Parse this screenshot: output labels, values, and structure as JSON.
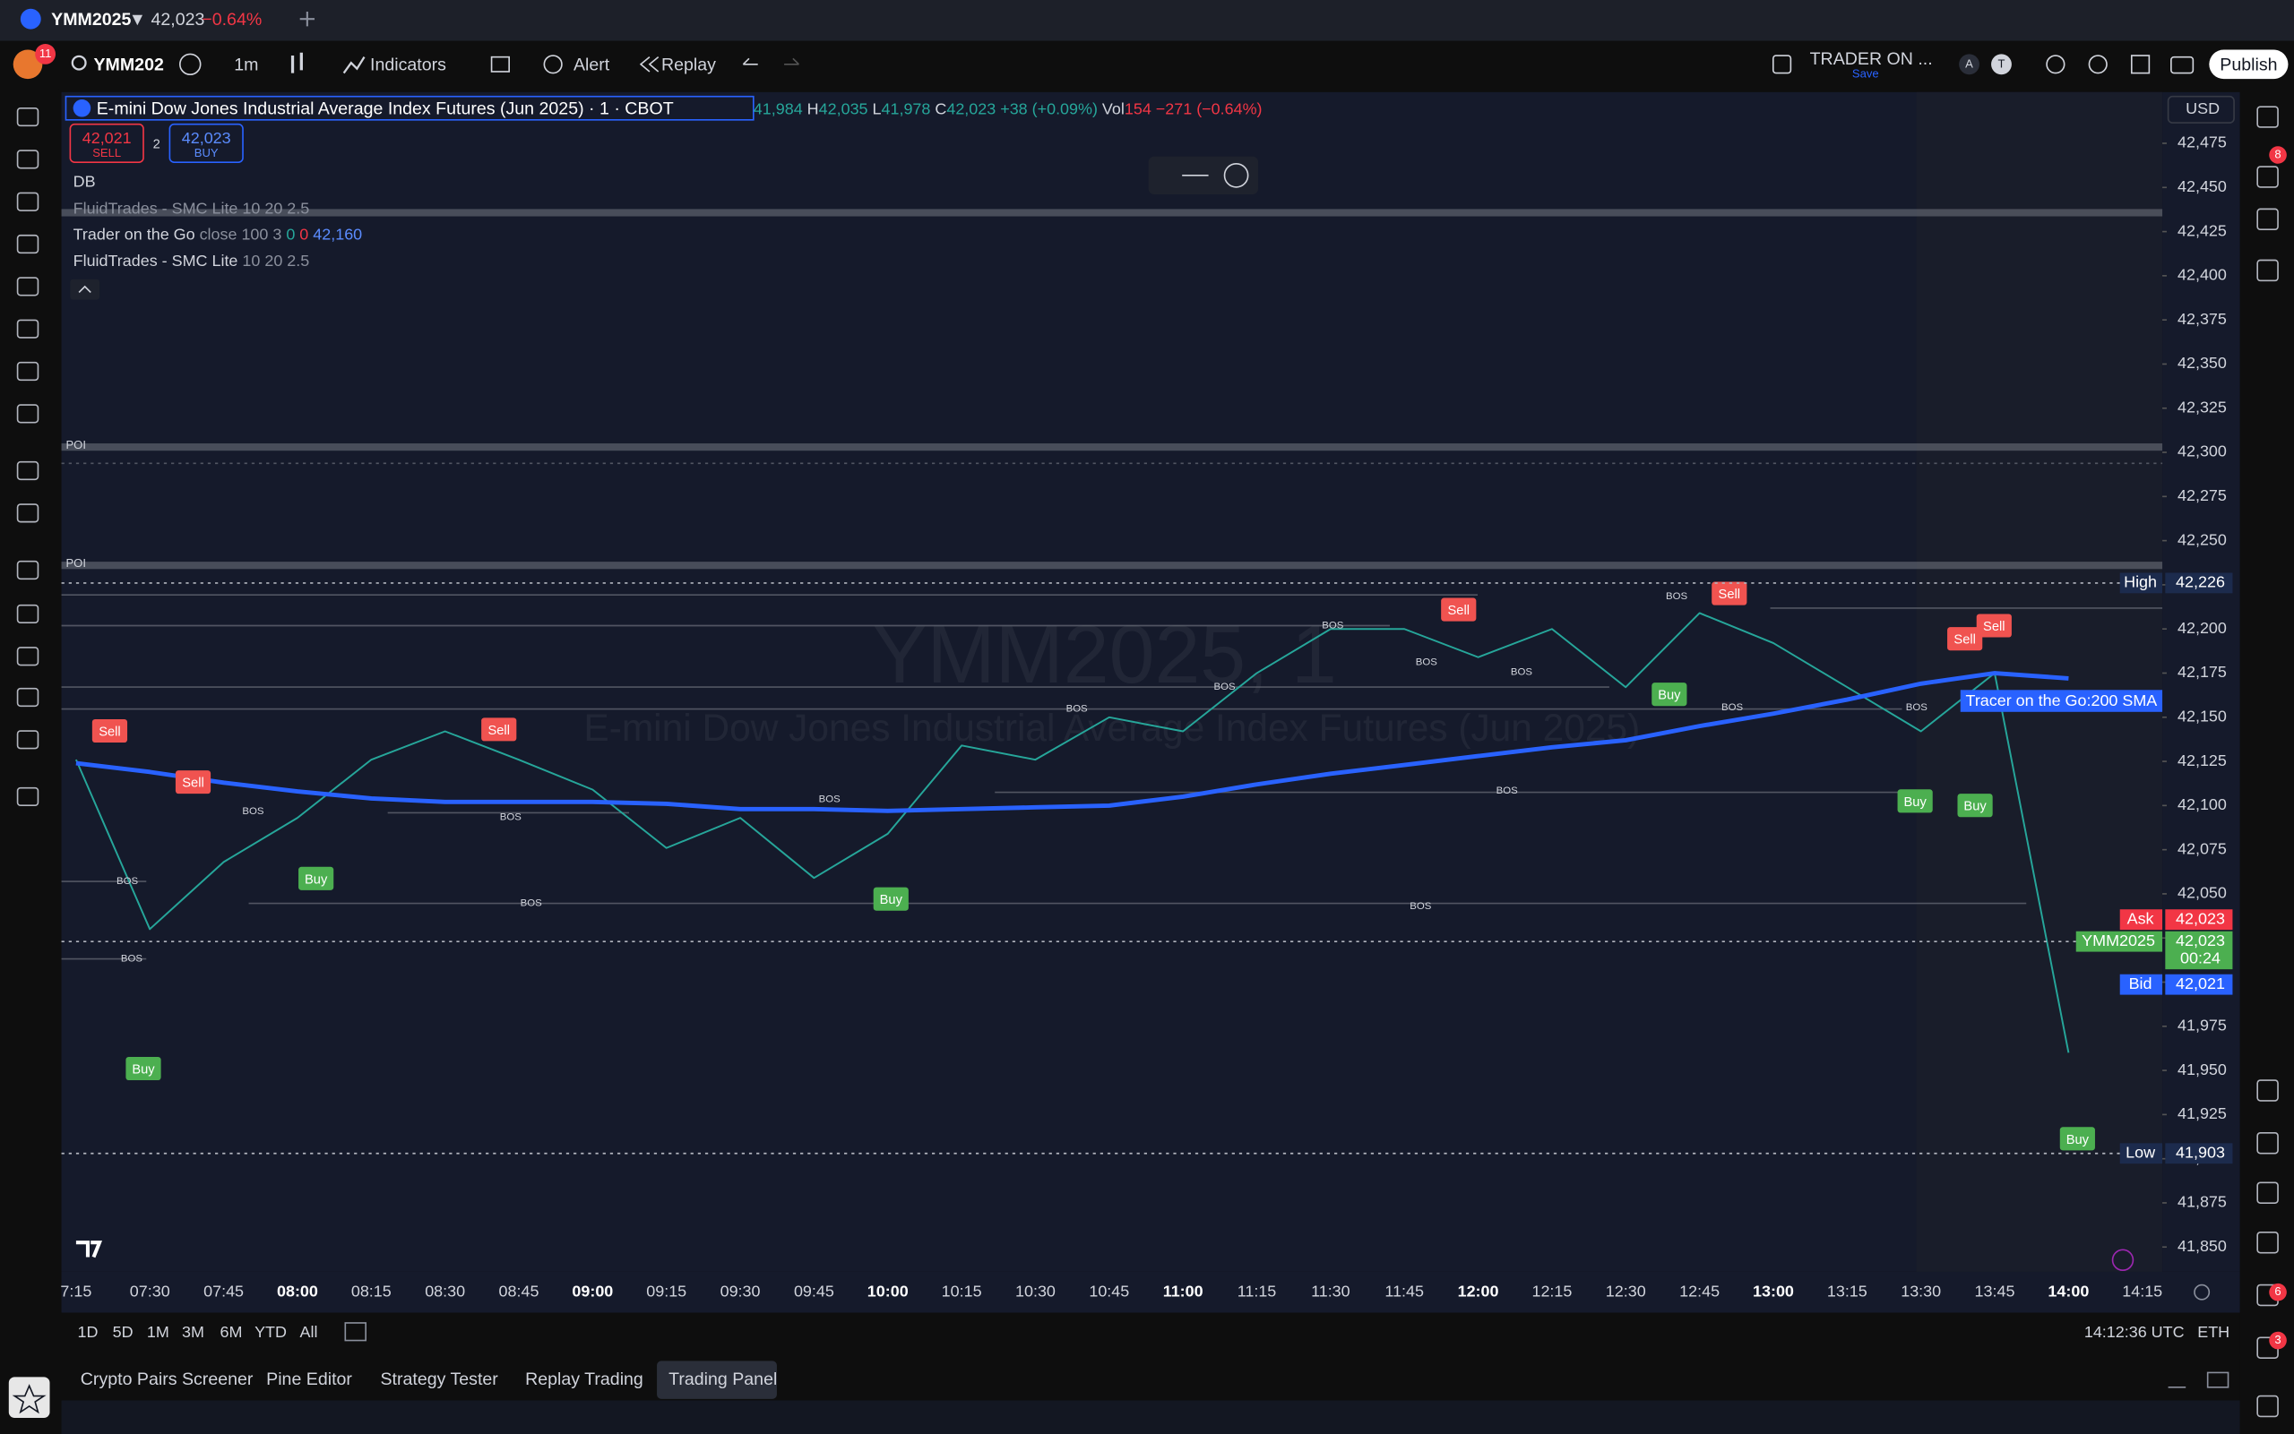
{
  "tab": {
    "symbol": "YMM2025",
    "price": "▼ 42,023",
    "change": "−0.64%"
  },
  "toolbar": {
    "notifications": "11",
    "symbol": "YMM202",
    "interval": "1m",
    "indicators": "Indicators",
    "alert": "Alert",
    "replay": "Replay",
    "layout": "TRADER ON ...",
    "save": "Save",
    "avatar_a": "A",
    "avatar_t": "T",
    "publish": "Publish"
  },
  "legend": {
    "title": "E-mini Dow Jones Industrial Average Index Futures (Jun 2025) · 1 · CBOT",
    "open": "41,984",
    "high_key": "H",
    "high": "42,035",
    "low_key": "L",
    "low": "41,978",
    "close_key": "C",
    "close": "42,023",
    "change": "+38 (+0.09%)",
    "vol_key": "Vol",
    "vol": "154",
    "vol_change": "−271 (−0.64%)",
    "sell_price": "42,021",
    "sell": "SELL",
    "spread": "2",
    "buy_price": "42,023",
    "buy": "BUY",
    "db": "DB",
    "indicators": [
      {
        "name": "FluidTrades - SMC Lite",
        "params": "10 20 2.5"
      },
      {
        "name": "Trader on the Go",
        "params": "close 100 3",
        "v1": "0",
        "v2": "0",
        "v3": "42,160"
      },
      {
        "name": "FluidTrades - SMC Lite",
        "params": "10 20 2.5"
      }
    ]
  },
  "currency": "USD",
  "watermark": {
    "symbol": "YMM2025, 1",
    "description": "E-mini Dow Jones Industrial Average Index Futures (Jun 2025)"
  },
  "chart_data": {
    "type": "line",
    "categories": [
      "7:15",
      "07:30",
      "07:45",
      "08:00",
      "08:15",
      "08:30",
      "08:45",
      "09:00",
      "09:15",
      "09:30",
      "09:45",
      "10:00",
      "10:15",
      "10:30",
      "10:45",
      "11:00",
      "11:15",
      "11:30",
      "11:45",
      "12:00",
      "12:15",
      "12:30",
      "12:45",
      "13:00",
      "13:15",
      "13:30",
      "13:45",
      "14:00",
      "14:15"
    ],
    "series": [
      {
        "name": "YMM2025",
        "color": "#26a69a",
        "values": [
          42126,
          42030,
          42068,
          42093,
          42126,
          42142,
          42126,
          42109,
          42076,
          42093,
          42059,
          42084,
          42134,
          42126,
          42150,
          42142,
          42175,
          42200,
          42200,
          42184,
          42200,
          42167,
          42209,
          42192,
          42167,
          42142,
          42175,
          41960,
          null
        ]
      },
      {
        "name": "Tracer on the Go:200 SMA",
        "color": "#2962ff",
        "values": [
          42124,
          42119,
          42113,
          42108,
          42104,
          42102,
          42102,
          42102,
          42101,
          42098,
          42098,
          42097,
          42098,
          42099,
          42100,
          42105,
          42112,
          42118,
          42123,
          42128,
          42133,
          42137,
          42145,
          42152,
          42160,
          42169,
          42175,
          42172,
          null
        ]
      }
    ],
    "ylim": [
      41836,
      42504
    ],
    "yticks": [
      {
        "value": 41850,
        "label": "41,850"
      },
      {
        "value": 41875,
        "label": "41,875"
      },
      {
        "value": 41900,
        "label": "41,900"
      },
      {
        "value": 41925,
        "label": "41,925"
      },
      {
        "value": 41950,
        "label": "41,950"
      },
      {
        "value": 41975,
        "label": "41,975"
      },
      {
        "value": 42000,
        "label": "42,000"
      },
      {
        "value": 42025,
        "label": "42,025"
      },
      {
        "value": 42050,
        "label": "42,050"
      },
      {
        "value": 42075,
        "label": "42,075"
      },
      {
        "value": 42100,
        "label": "42,100"
      },
      {
        "value": 42125,
        "label": "42,125"
      },
      {
        "value": 42150,
        "label": "42,150"
      },
      {
        "value": 42175,
        "label": "42,175"
      },
      {
        "value": 42200,
        "label": "42,200"
      },
      {
        "value": 42225,
        "label": "42,225"
      },
      {
        "value": 42250,
        "label": "42,250"
      },
      {
        "value": 42275,
        "label": "42,275"
      },
      {
        "value": 42300,
        "label": "42,300"
      },
      {
        "value": 42325,
        "label": "42,325"
      },
      {
        "value": 42350,
        "label": "42,350"
      },
      {
        "value": 42375,
        "label": "42,375"
      },
      {
        "value": 42400,
        "label": "42,400"
      },
      {
        "value": 42425,
        "label": "42,425"
      },
      {
        "value": 42450,
        "label": "42,450"
      },
      {
        "value": 42475,
        "label": "42,475"
      }
    ],
    "grid": false,
    "levels": [
      {
        "name": "High",
        "value": 42226,
        "label": "42,226",
        "color": "#1c2b4d"
      },
      {
        "name": "Ask",
        "value": 42023,
        "label": "42,023",
        "color": "#f23645"
      },
      {
        "name": "Bid",
        "value": 42021,
        "label": "42,021",
        "color": "#2962ff"
      },
      {
        "name": "Low",
        "value": 41903,
        "label": "41,903",
        "color": "#1c2b4d"
      }
    ],
    "last_price": {
      "value": 42023,
      "label": "42,023",
      "countdown": "00:24",
      "color": "#4caf50"
    },
    "zones": [
      {
        "label": "POI",
        "value": 42303
      },
      {
        "label": "POI",
        "value": 42236
      }
    ],
    "signals": [
      {
        "label": "Sell",
        "color": "#f05350"
      },
      {
        "label": "Sell",
        "color": "#f05350"
      },
      {
        "label": "Buy",
        "color": "#4caf50"
      },
      {
        "label": "Sell",
        "color": "#f05350"
      },
      {
        "label": "Buy",
        "color": "#4caf50"
      },
      {
        "label": "Sell",
        "color": "#f05350"
      },
      {
        "label": "Buy",
        "color": "#4caf50"
      },
      {
        "label": "Sell",
        "color": "#f05350"
      },
      {
        "label": "Sell",
        "color": "#f05350"
      },
      {
        "label": "Sell",
        "color": "#f05350"
      },
      {
        "label": "Buy",
        "color": "#4caf50"
      },
      {
        "label": "Buy",
        "color": "#4caf50"
      },
      {
        "label": "Buy",
        "color": "#4caf50"
      },
      {
        "label": "Buy",
        "color": "#4caf50"
      }
    ],
    "bos_labels": [
      "BOS",
      "BOS",
      "BOS",
      "BOS",
      "BOS",
      "BOS",
      "BOS",
      "BOS",
      "BOS",
      "BOS",
      "BOS",
      "BOS",
      "BOS",
      "BOS",
      "BOS",
      "BOS"
    ]
  },
  "bottom_bar": {
    "ranges": [
      "1D",
      "5D",
      "1M",
      "3M",
      "6M",
      "YTD",
      "All"
    ],
    "clock": "14:12:36 UTC",
    "session": "ETH"
  },
  "panel_tabs": [
    "Crypto Pairs Screener",
    "Pine Editor",
    "Strategy Tester",
    "Replay Trading",
    "Trading Panel"
  ],
  "side_badges": [
    "8",
    "6",
    "3"
  ]
}
